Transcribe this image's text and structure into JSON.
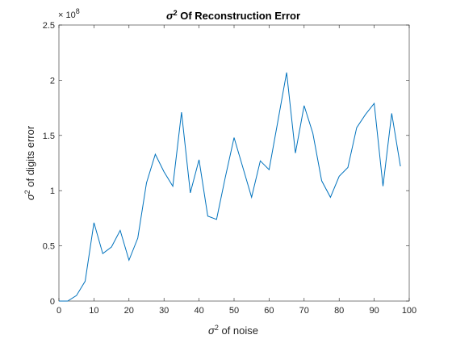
{
  "chart_data": {
    "type": "line",
    "title": {
      "sym": "σ",
      "sup": "2",
      "rest": " Of Reconstruction Error"
    },
    "xlabel": {
      "sym": "σ",
      "sup": "2",
      "rest": " of noise"
    },
    "ylabel": {
      "sym": "σ",
      "sup": "2",
      "rest": " of digits error"
    },
    "y_exponent": {
      "base": "× 10",
      "power": "8"
    },
    "xlim": [
      0,
      100
    ],
    "ylim": [
      0,
      2.5
    ],
    "xticks": [
      "0",
      "10",
      "20",
      "30",
      "40",
      "50",
      "60",
      "70",
      "80",
      "90",
      "100"
    ],
    "yticks": [
      "0",
      "0.5",
      "1",
      "1.5",
      "2",
      "2.5"
    ],
    "grid": false,
    "line_color": "#0072BD",
    "series": [
      {
        "x": [
          0,
          2.5,
          5,
          7.5,
          10,
          12.5,
          15,
          17.5,
          20,
          22.5,
          25,
          27.5,
          30,
          32.5,
          35,
          37.5,
          40,
          42.5,
          45,
          47.5,
          50,
          52.5,
          55,
          57.5,
          60,
          62.5,
          65,
          67.5,
          70,
          72.5,
          75,
          77.5,
          80,
          82.5,
          85,
          87.5,
          90,
          92.5,
          95,
          97.5
        ],
        "values": [
          0,
          0,
          0.05,
          0.18,
          0.71,
          0.43,
          0.49,
          0.64,
          0.37,
          0.57,
          1.07,
          1.33,
          1.17,
          1.04,
          1.71,
          0.98,
          1.28,
          0.77,
          0.74,
          1.12,
          1.48,
          1.21,
          0.94,
          1.27,
          1.19,
          1.63,
          2.07,
          1.34,
          1.77,
          1.52,
          1.09,
          0.94,
          1.13,
          1.21,
          1.57,
          1.69,
          1.79,
          1.04,
          1.7,
          1.22
        ]
      }
    ]
  }
}
